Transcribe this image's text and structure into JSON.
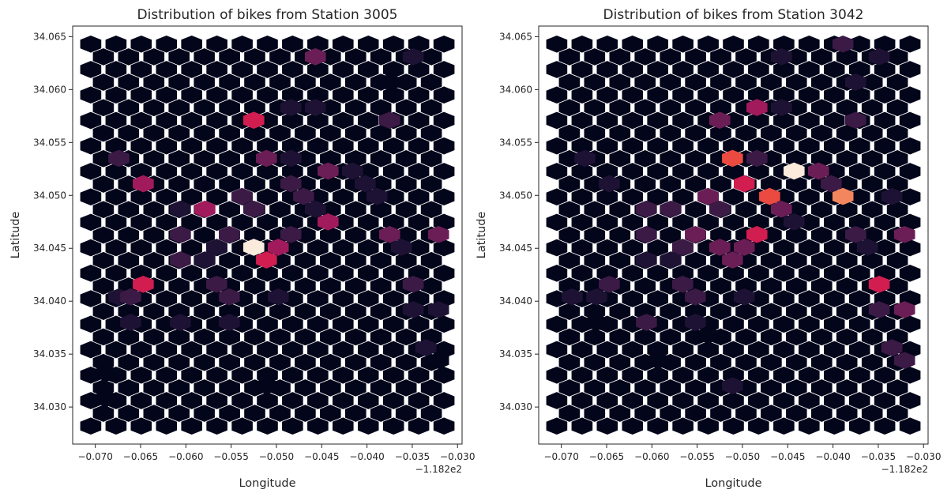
{
  "figure": {
    "background": "#ffffff",
    "colormap": [
      "#03051a",
      "#1e1234",
      "#3b1a45",
      "#6a1e55",
      "#a11a5b",
      "#d11d50",
      "#eb4a40",
      "#f3865c",
      "#f7b99a",
      "#faebdd"
    ]
  },
  "chart_data": [
    {
      "type": "heatmap",
      "subtype": "hexbin",
      "title": "Distribution of bikes from Station 3005",
      "xlabel": "Longitude",
      "ylabel": "Latitude",
      "x_offset_label": "−1.182e2",
      "xlim": [
        -0.0725,
        -0.0295
      ],
      "ylim": [
        34.0265,
        34.066
      ],
      "xticks": [
        -0.07,
        -0.065,
        -0.06,
        -0.055,
        -0.05,
        -0.045,
        -0.04,
        -0.035,
        -0.03
      ],
      "xtick_labels": [
        "−0.070",
        "−0.065",
        "−0.060",
        "−0.055",
        "−0.050",
        "−0.045",
        "−0.040",
        "−0.035",
        "−0.030"
      ],
      "yticks": [
        34.03,
        34.035,
        34.04,
        34.045,
        34.05,
        34.055,
        34.06,
        34.065
      ],
      "ytick_labels": [
        "34.030",
        "34.035",
        "34.040",
        "34.045",
        "34.050",
        "34.055",
        "34.060",
        "34.065"
      ],
      "grid": false,
      "hex_extent": {
        "x": [
          -0.0705,
          -0.0315
        ],
        "y": [
          34.0282,
          34.0643
        ]
      },
      "background_value": 0,
      "cells": [
        {
          "x": -0.0457,
          "y": 34.0631,
          "v": 3
        },
        {
          "x": -0.0349,
          "y": 34.0631,
          "v": 0.5
        },
        {
          "x": -0.0375,
          "y": 34.0607,
          "v": 0.3
        },
        {
          "x": -0.0484,
          "y": 34.0583,
          "v": 1
        },
        {
          "x": -0.0457,
          "y": 34.0583,
          "v": 1
        },
        {
          "x": -0.0525,
          "y": 34.0571,
          "v": 5
        },
        {
          "x": -0.0375,
          "y": 34.0571,
          "v": 1.5
        },
        {
          "x": -0.0674,
          "y": 34.0535,
          "v": 2
        },
        {
          "x": -0.0511,
          "y": 34.0535,
          "v": 2.5
        },
        {
          "x": -0.0484,
          "y": 34.0535,
          "v": 0.5
        },
        {
          "x": -0.0443,
          "y": 34.0523,
          "v": 3
        },
        {
          "x": -0.0416,
          "y": 34.0523,
          "v": 0.7
        },
        {
          "x": -0.0647,
          "y": 34.0511,
          "v": 3.5
        },
        {
          "x": -0.0484,
          "y": 34.0511,
          "v": 1.5
        },
        {
          "x": -0.0402,
          "y": 34.0511,
          "v": 1
        },
        {
          "x": -0.0538,
          "y": 34.0499,
          "v": 2
        },
        {
          "x": -0.047,
          "y": 34.0499,
          "v": 1.5
        },
        {
          "x": -0.0389,
          "y": 34.0499,
          "v": 0.5
        },
        {
          "x": -0.0606,
          "y": 34.0487,
          "v": 1
        },
        {
          "x": -0.0579,
          "y": 34.0487,
          "v": 4
        },
        {
          "x": -0.0525,
          "y": 34.0487,
          "v": 1.5
        },
        {
          "x": -0.0457,
          "y": 34.0487,
          "v": 1
        },
        {
          "x": -0.0443,
          "y": 34.0475,
          "v": 4
        },
        {
          "x": -0.0606,
          "y": 34.0463,
          "v": 1.5
        },
        {
          "x": -0.0552,
          "y": 34.0463,
          "v": 1.5
        },
        {
          "x": -0.0484,
          "y": 34.0463,
          "v": 2
        },
        {
          "x": -0.0375,
          "y": 34.0463,
          "v": 3
        },
        {
          "x": -0.0321,
          "y": 34.0463,
          "v": 2.5
        },
        {
          "x": -0.0566,
          "y": 34.0451,
          "v": 1
        },
        {
          "x": -0.0525,
          "y": 34.0451,
          "v": 9
        },
        {
          "x": -0.0498,
          "y": 34.0451,
          "v": 3.5
        },
        {
          "x": -0.0362,
          "y": 34.0451,
          "v": 0.7
        },
        {
          "x": -0.0606,
          "y": 34.0439,
          "v": 1.5
        },
        {
          "x": -0.0579,
          "y": 34.0439,
          "v": 1.2
        },
        {
          "x": -0.0511,
          "y": 34.0439,
          "v": 5
        },
        {
          "x": -0.0647,
          "y": 34.0416,
          "v": 5
        },
        {
          "x": -0.0566,
          "y": 34.0416,
          "v": 2
        },
        {
          "x": -0.0349,
          "y": 34.0416,
          "v": 1.5
        },
        {
          "x": -0.0674,
          "y": 34.0404,
          "v": 1
        },
        {
          "x": -0.0661,
          "y": 34.0404,
          "v": 1.5
        },
        {
          "x": -0.0552,
          "y": 34.0404,
          "v": 1.5
        },
        {
          "x": -0.0498,
          "y": 34.0404,
          "v": 0.5
        },
        {
          "x": -0.0349,
          "y": 34.0392,
          "v": 1
        },
        {
          "x": -0.0321,
          "y": 34.0392,
          "v": 0.7
        },
        {
          "x": -0.0661,
          "y": 34.038,
          "v": 0.5
        },
        {
          "x": -0.0606,
          "y": 34.038,
          "v": 1
        },
        {
          "x": -0.0552,
          "y": 34.038,
          "v": 0.7
        },
        {
          "x": -0.0335,
          "y": 34.0356,
          "v": 0.5
        },
        {
          "x": -0.0321,
          "y": 34.0344,
          "v": 0.3
        },
        {
          "x": -0.0688,
          "y": 34.0332,
          "v": 0.4
        },
        {
          "x": -0.0511,
          "y": 34.032,
          "v": 0.3
        },
        {
          "x": -0.0688,
          "y": 34.0308,
          "v": 0.3
        }
      ]
    },
    {
      "type": "heatmap",
      "subtype": "hexbin",
      "title": "Distribution of bikes from Station 3042",
      "xlabel": "Longitude",
      "ylabel": "Latitude",
      "x_offset_label": "−1.182e2",
      "xlim": [
        -0.0725,
        -0.0295
      ],
      "ylim": [
        34.0265,
        34.066
      ],
      "xticks": [
        -0.07,
        -0.065,
        -0.06,
        -0.055,
        -0.05,
        -0.045,
        -0.04,
        -0.035,
        -0.03
      ],
      "xtick_labels": [
        "−0.070",
        "−0.065",
        "−0.060",
        "−0.055",
        "−0.050",
        "−0.045",
        "−0.040",
        "−0.035",
        "−0.030"
      ],
      "yticks": [
        34.03,
        34.035,
        34.04,
        34.045,
        34.05,
        34.055,
        34.06,
        34.065
      ],
      "ytick_labels": [
        "34.030",
        "34.035",
        "34.040",
        "34.045",
        "34.050",
        "34.055",
        "34.060",
        "34.065"
      ],
      "grid": false,
      "hex_extent": {
        "x": [
          -0.0705,
          -0.0315
        ],
        "y": [
          34.0282,
          34.0643
        ]
      },
      "background_value": 0,
      "cells": [
        {
          "x": -0.0389,
          "y": 34.0643,
          "v": 1.5
        },
        {
          "x": -0.0457,
          "y": 34.0631,
          "v": 0.7
        },
        {
          "x": -0.0349,
          "y": 34.0631,
          "v": 1
        },
        {
          "x": -0.0375,
          "y": 34.0607,
          "v": 1
        },
        {
          "x": -0.0484,
          "y": 34.0583,
          "v": 4
        },
        {
          "x": -0.0457,
          "y": 34.0583,
          "v": 1
        },
        {
          "x": -0.0525,
          "y": 34.0571,
          "v": 2.5
        },
        {
          "x": -0.0375,
          "y": 34.0571,
          "v": 2
        },
        {
          "x": -0.0674,
          "y": 34.0535,
          "v": 0.5
        },
        {
          "x": -0.0511,
          "y": 34.0535,
          "v": 6
        },
        {
          "x": -0.0484,
          "y": 34.0535,
          "v": 1.5
        },
        {
          "x": -0.0443,
          "y": 34.0523,
          "v": 9
        },
        {
          "x": -0.0416,
          "y": 34.0523,
          "v": 3
        },
        {
          "x": -0.0647,
          "y": 34.0511,
          "v": 1.2
        },
        {
          "x": -0.0498,
          "y": 34.0511,
          "v": 5
        },
        {
          "x": -0.0402,
          "y": 34.0511,
          "v": 2
        },
        {
          "x": -0.0538,
          "y": 34.0499,
          "v": 3
        },
        {
          "x": -0.047,
          "y": 34.0499,
          "v": 5.5
        },
        {
          "x": -0.0389,
          "y": 34.0499,
          "v": 7
        },
        {
          "x": -0.0335,
          "y": 34.0499,
          "v": 1
        },
        {
          "x": -0.0606,
          "y": 34.0487,
          "v": 1.5
        },
        {
          "x": -0.0579,
          "y": 34.0487,
          "v": 2
        },
        {
          "x": -0.0525,
          "y": 34.0487,
          "v": 1.5
        },
        {
          "x": -0.0457,
          "y": 34.0487,
          "v": 3
        },
        {
          "x": -0.0443,
          "y": 34.0475,
          "v": 1
        },
        {
          "x": -0.0606,
          "y": 34.0463,
          "v": 1.5
        },
        {
          "x": -0.0552,
          "y": 34.0463,
          "v": 2.5
        },
        {
          "x": -0.0484,
          "y": 34.0463,
          "v": 4.5
        },
        {
          "x": -0.0375,
          "y": 34.0463,
          "v": 1.5
        },
        {
          "x": -0.0321,
          "y": 34.0463,
          "v": 3
        },
        {
          "x": -0.0566,
          "y": 34.0451,
          "v": 2
        },
        {
          "x": -0.0525,
          "y": 34.0451,
          "v": 2.5
        },
        {
          "x": -0.0498,
          "y": 34.0451,
          "v": 2.5
        },
        {
          "x": -0.0362,
          "y": 34.0451,
          "v": 1
        },
        {
          "x": -0.0606,
          "y": 34.0439,
          "v": 1
        },
        {
          "x": -0.0579,
          "y": 34.0439,
          "v": 0.7
        },
        {
          "x": -0.0511,
          "y": 34.0439,
          "v": 2.5
        },
        {
          "x": -0.0647,
          "y": 34.0416,
          "v": 1.5
        },
        {
          "x": -0.0566,
          "y": 34.0416,
          "v": 1.5
        },
        {
          "x": -0.0349,
          "y": 34.0416,
          "v": 4.5
        },
        {
          "x": -0.0688,
          "y": 34.0404,
          "v": 0.5
        },
        {
          "x": -0.0661,
          "y": 34.0404,
          "v": 0.7
        },
        {
          "x": -0.0552,
          "y": 34.0404,
          "v": 1.5
        },
        {
          "x": -0.0498,
          "y": 34.0404,
          "v": 1
        },
        {
          "x": -0.0349,
          "y": 34.0392,
          "v": 2
        },
        {
          "x": -0.0321,
          "y": 34.0392,
          "v": 2.5
        },
        {
          "x": -0.0661,
          "y": 34.038,
          "v": 0.3
        },
        {
          "x": -0.0606,
          "y": 34.038,
          "v": 2
        },
        {
          "x": -0.0552,
          "y": 34.038,
          "v": 0.5
        },
        {
          "x": -0.0538,
          "y": 34.0368,
          "v": 0.4
        },
        {
          "x": -0.0335,
          "y": 34.0356,
          "v": 2
        },
        {
          "x": -0.0321,
          "y": 34.0344,
          "v": 1.5
        },
        {
          "x": -0.0593,
          "y": 34.0344,
          "v": 0.3
        },
        {
          "x": -0.0511,
          "y": 34.032,
          "v": 1
        }
      ]
    }
  ]
}
